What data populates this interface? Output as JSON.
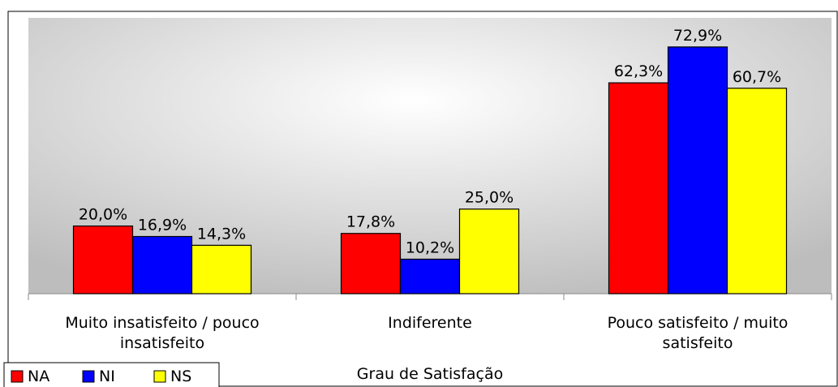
{
  "chart_data": {
    "type": "bar",
    "categories": [
      "Muito insatisfeito / pouco insatisfeito",
      "Indiferente",
      "Pouco satisfeito / muito satisfeito"
    ],
    "x_label": "Grau de Satisfação",
    "series": [
      {
        "name": "NA",
        "color": "#ff0000",
        "values": [
          20.0,
          17.8,
          62.3
        ],
        "value_labels": [
          "20,0%",
          "17,8%",
          "62,3%"
        ]
      },
      {
        "name": "NI",
        "color": "#0000ff",
        "values": [
          16.9,
          10.2,
          72.9
        ],
        "value_labels": [
          "16,9%",
          "10,2%",
          "72,9%"
        ]
      },
      {
        "name": "NS",
        "color": "#ffff00",
        "values": [
          14.3,
          25.0,
          60.7
        ],
        "value_labels": [
          "14,3%",
          "25,0%",
          "60,7%"
        ]
      }
    ],
    "ylim": [
      0,
      81.5
    ],
    "legend": "bottom-left"
  }
}
